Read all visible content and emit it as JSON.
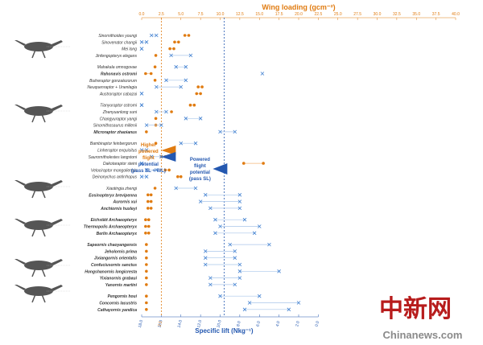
{
  "colors": {
    "orange": "#e07b10",
    "blue": "#2458b0",
    "x_marker": "#3f7fd0",
    "link_blue": "#a9c6ea",
    "link_orange": "#f3b77a",
    "watermark": "#b71c1c"
  },
  "chart_data": {
    "type": "scatter",
    "top_axis": {
      "label": "Wing loading (gcm⁻²)",
      "min": 0,
      "max": 40,
      "ticks": [
        "0.0",
        "2.5",
        "5.0",
        "7.5",
        "10.0",
        "12.5",
        "15.0",
        "17.5",
        "20.0",
        "22.5",
        "25.0",
        "27.5",
        "30.0",
        "32.5",
        "35.0",
        "37.5",
        "40.0"
      ]
    },
    "bottom_axis": {
      "label": "Specific lift (Nkg⁻¹)",
      "ticks": [
        "18.0",
        "16.0",
        "14.0",
        "12.0",
        "10.0",
        "8.0",
        "6.0",
        "4.0",
        "2.0",
        "0.0"
      ],
      "tick_positions_wl": [
        0,
        2.5,
        5,
        7.5,
        10,
        12.5,
        15,
        17.5,
        20,
        22.5
      ],
      "max_label": "2.5"
    },
    "reference_lines": [
      {
        "axis": "wing_loading",
        "value": 2.5,
        "series": "orange",
        "label": "Higher powered flight potential (pass SL + WL)"
      },
      {
        "axis": "wing_loading",
        "value": 10.5,
        "series": "blue",
        "label": "Powered flight potential (pass SL)"
      }
    ],
    "annotations": {
      "higher": [
        "Higher",
        "powered",
        "flight",
        "potential",
        "(pass SL + WL)"
      ],
      "powered": [
        "Powered",
        "flight",
        "potential",
        "(pass SL)"
      ]
    },
    "groups": [
      {
        "taxa": [
          {
            "name": "Sinornithoides youngi",
            "bold": false,
            "wl": [
              5.5,
              6.0
            ],
            "sl": [
              16.5,
              17.0
            ]
          },
          {
            "name": "Sinovenator changii",
            "bold": false,
            "wl": [
              4.2,
              4.7
            ],
            "sl": [
              17.5,
              18.0
            ]
          },
          {
            "name": "Mei long",
            "bold": false,
            "wl": [
              3.6,
              4.1
            ],
            "sl": [
              18.0,
              18.5
            ]
          },
          {
            "name": "Jinfengopteryx elegans",
            "bold": false,
            "wl": [
              1.8
            ],
            "sl": [
              13.0,
              15.0
            ]
          }
        ]
      },
      {
        "taxa": [
          {
            "name": "Mahakala omnogovae",
            "bold": false,
            "wl": [
              1.7
            ],
            "sl": [
              13.5,
              14.5
            ]
          },
          {
            "name": "Rahonavis ostromi",
            "bold": true,
            "wl": [
              0.5,
              1.2
            ],
            "sl": [
              5.7
            ]
          },
          {
            "name": "Buitreraptor gonzalezorum",
            "bold": false,
            "wl": [
              1.7
            ],
            "sl": [
              13.5,
              15.5
            ]
          },
          {
            "name": "Neuquenraptor + Unenlagia",
            "bold": false,
            "wl": [
              7.2,
              7.7
            ],
            "sl": [
              14.0,
              16.5
            ]
          },
          {
            "name": "Austroraptor cabazai",
            "bold": false,
            "wl": [
              7.0,
              7.5
            ],
            "sl": [
              19.0,
              20.0
            ]
          }
        ]
      },
      {
        "taxa": [
          {
            "name": "Tianyuraptor ostromi",
            "bold": false,
            "wl": [
              6.2,
              6.7
            ],
            "sl": [
              24.0,
              25.0
            ]
          },
          {
            "name": "Zhenyuanlong suni",
            "bold": false,
            "wl": [
              3.8
            ],
            "sl": [
              15.5,
              16.5
            ]
          },
          {
            "name": "Changyuraptor yangi",
            "bold": false,
            "wl": [
              1.8
            ],
            "sl": [
              12.0,
              13.5
            ]
          },
          {
            "name": "Sinornithosaurus millenii",
            "bold": false,
            "wl": [
              1.8
            ],
            "sl": [
              16.0,
              17.5
            ]
          },
          {
            "name": "Microraptor zhaoianus",
            "bold": true,
            "wl": [
              0.6
            ],
            "sl": [
              8.5,
              10.0
            ]
          }
        ]
      },
      {
        "taxa": [
          {
            "name": "Bambiraptor feinbergorum",
            "bold": false,
            "wl": [
              1.8
            ],
            "sl": [
              12.5,
              14.0
            ]
          },
          {
            "name": "Linheraptor exquisitus",
            "bold": false,
            "wl": [
              3.5
            ],
            "sl": [
              17.5,
              18.5
            ]
          },
          {
            "name": "Saurornitholestes langstoni",
            "bold": false,
            "wl": [
              2.5,
              3.0
            ],
            "sl": [
              16.0,
              17.0
            ]
          },
          {
            "name": "Dakotaraptor steini",
            "bold": false,
            "wl": [
              13.0,
              15.5
            ],
            "sl": [
              21.0,
              22.0
            ]
          },
          {
            "name": "Velociraptor mongoliensis",
            "bold": false,
            "wl": [
              3.0,
              3.5
            ],
            "sl": [
              16.5,
              17.5
            ]
          },
          {
            "name": "Deinonychus antirrhopus",
            "bold": false,
            "wl": [
              4.6,
              5.0
            ],
            "sl": [
              17.5,
              18.5
            ]
          }
        ]
      },
      {
        "taxa": [
          {
            "name": "Xiaotingia zhengi",
            "bold": false,
            "wl": [
              1.7
            ],
            "sl": [
              12.5,
              14.5
            ]
          },
          {
            "name": "Eosinopteryx brevipenna",
            "bold": true,
            "wl": [
              0.8,
              1.2
            ],
            "sl": [
              8.0,
              11.5
            ]
          },
          {
            "name": "Aurornis xui",
            "bold": true,
            "wl": [
              0.8,
              1.2
            ],
            "sl": [
              8.0,
              12.0
            ]
          },
          {
            "name": "Anchiornis huxleyi",
            "bold": true,
            "wl": [
              0.8,
              1.2
            ],
            "sl": [
              8.0,
              11.0
            ]
          }
        ]
      },
      {
        "taxa": [
          {
            "name": "Eichstätt Archaeopteryx",
            "bold": true,
            "wl": [
              0.5,
              0.9
            ],
            "sl": [
              7.5,
              10.5
            ]
          },
          {
            "name": "Thermopolis Archaeopteryx",
            "bold": true,
            "wl": [
              0.5,
              0.9
            ],
            "sl": [
              6.0,
              10.0
            ]
          },
          {
            "name": "Berlin Archaeopteryx",
            "bold": true,
            "wl": [
              0.5,
              0.9
            ],
            "sl": [
              6.5,
              10.5
            ]
          }
        ]
      },
      {
        "taxa": [
          {
            "name": "Sapeornis chaoyangensis",
            "bold": true,
            "wl": [
              0.6
            ],
            "sl": [
              5.0,
              9.0
            ]
          },
          {
            "name": "Jeholornis prima",
            "bold": true,
            "wl": [
              0.6
            ],
            "sl": [
              8.5,
              11.5
            ]
          },
          {
            "name": "Jixiangornis orientalis",
            "bold": true,
            "wl": [
              0.6
            ],
            "sl": [
              8.5,
              11.5
            ]
          },
          {
            "name": "Confuciusornis sanctus",
            "bold": true,
            "wl": [
              0.6
            ],
            "sl": [
              8.0,
              11.5
            ]
          },
          {
            "name": "Hongshanornis longicresta",
            "bold": true,
            "wl": [
              0.6
            ],
            "sl": [
              4.0,
              8.0
            ]
          },
          {
            "name": "Yixianornis grabaui",
            "bold": true,
            "wl": [
              0.6
            ],
            "sl": [
              8.0,
              11.0
            ]
          },
          {
            "name": "Yanornis martini",
            "bold": true,
            "wl": [
              0.6
            ],
            "sl": [
              8.5,
              11.0
            ]
          }
        ]
      },
      {
        "taxa": [
          {
            "name": "Pengornis houi",
            "bold": true,
            "wl": [
              0.6
            ],
            "sl": [
              6.0,
              10.0
            ]
          },
          {
            "name": "Concornis lacustris",
            "bold": true,
            "wl": [
              0.6
            ],
            "sl": [
              2.0,
              7.0
            ]
          },
          {
            "name": "Cathayornis yandica",
            "bold": true,
            "wl": [
              0.6
            ],
            "sl": [
              3.0,
              7.5
            ]
          }
        ]
      }
    ]
  },
  "watermark": {
    "cn": "中新网",
    "en": "Chinanews.com"
  }
}
